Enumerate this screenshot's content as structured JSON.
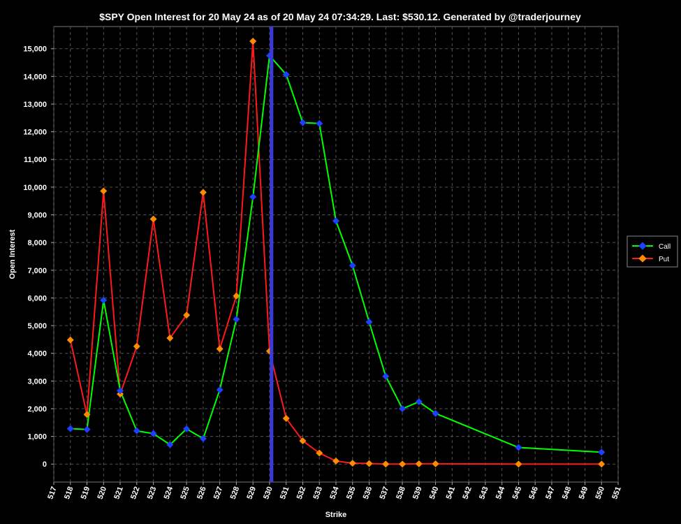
{
  "chart_data": {
    "type": "line",
    "title": "$SPY Open Interest for 20 May 24 as of 20 May 24 07:34:29.  Last: $530.12.  Generated by @traderjourney",
    "xlabel": "Strike",
    "ylabel": "Open Interest",
    "xlim": [
      517,
      551
    ],
    "ylim": [
      -650,
      15800
    ],
    "x_ticks": [
      517,
      518,
      519,
      520,
      521,
      522,
      523,
      524,
      525,
      526,
      527,
      528,
      529,
      530,
      531,
      532,
      533,
      534,
      535,
      536,
      537,
      538,
      539,
      540,
      541,
      542,
      543,
      544,
      545,
      546,
      547,
      548,
      549,
      550,
      551
    ],
    "y_ticks": [
      0,
      1000,
      2000,
      3000,
      4000,
      5000,
      6000,
      7000,
      8000,
      9000,
      10000,
      11000,
      12000,
      13000,
      14000,
      15000
    ],
    "y_tick_labels": [
      "0",
      "1,000",
      "2,000",
      "3,000",
      "4,000",
      "5,000",
      "6,000",
      "7,000",
      "8,000",
      "9,000",
      "10,000",
      "11,000",
      "12,000",
      "13,000",
      "14,000",
      "15,000"
    ],
    "grid": true,
    "legend_position": "right",
    "last_price": 530.12,
    "series": [
      {
        "name": "Call",
        "color": "#00ff00",
        "marker_color": "#1e40ff",
        "x": [
          518,
          519,
          520,
          521,
          522,
          523,
          524,
          525,
          526,
          527,
          528,
          529,
          530,
          531,
          532,
          533,
          534,
          535,
          536,
          537,
          538,
          539,
          540,
          545,
          550
        ],
        "values": [
          1280,
          1250,
          5920,
          2650,
          1200,
          1100,
          700,
          1270,
          920,
          2680,
          5230,
          9650,
          14750,
          14070,
          12330,
          12300,
          8780,
          7170,
          5130,
          3170,
          2000,
          2250,
          1830,
          600,
          430
        ]
      },
      {
        "name": "Put",
        "color": "#ff1a1a",
        "marker_color": "#ff8c00",
        "x": [
          518,
          519,
          520,
          521,
          522,
          523,
          524,
          525,
          526,
          527,
          528,
          529,
          530,
          531,
          532,
          533,
          534,
          535,
          536,
          537,
          538,
          539,
          540,
          545,
          550
        ],
        "values": [
          4480,
          1790,
          9860,
          2530,
          4250,
          8850,
          4550,
          5380,
          9810,
          4160,
          6070,
          15270,
          4080,
          1650,
          840,
          400,
          110,
          30,
          20,
          0,
          0,
          10,
          10,
          0,
          0
        ]
      }
    ]
  }
}
